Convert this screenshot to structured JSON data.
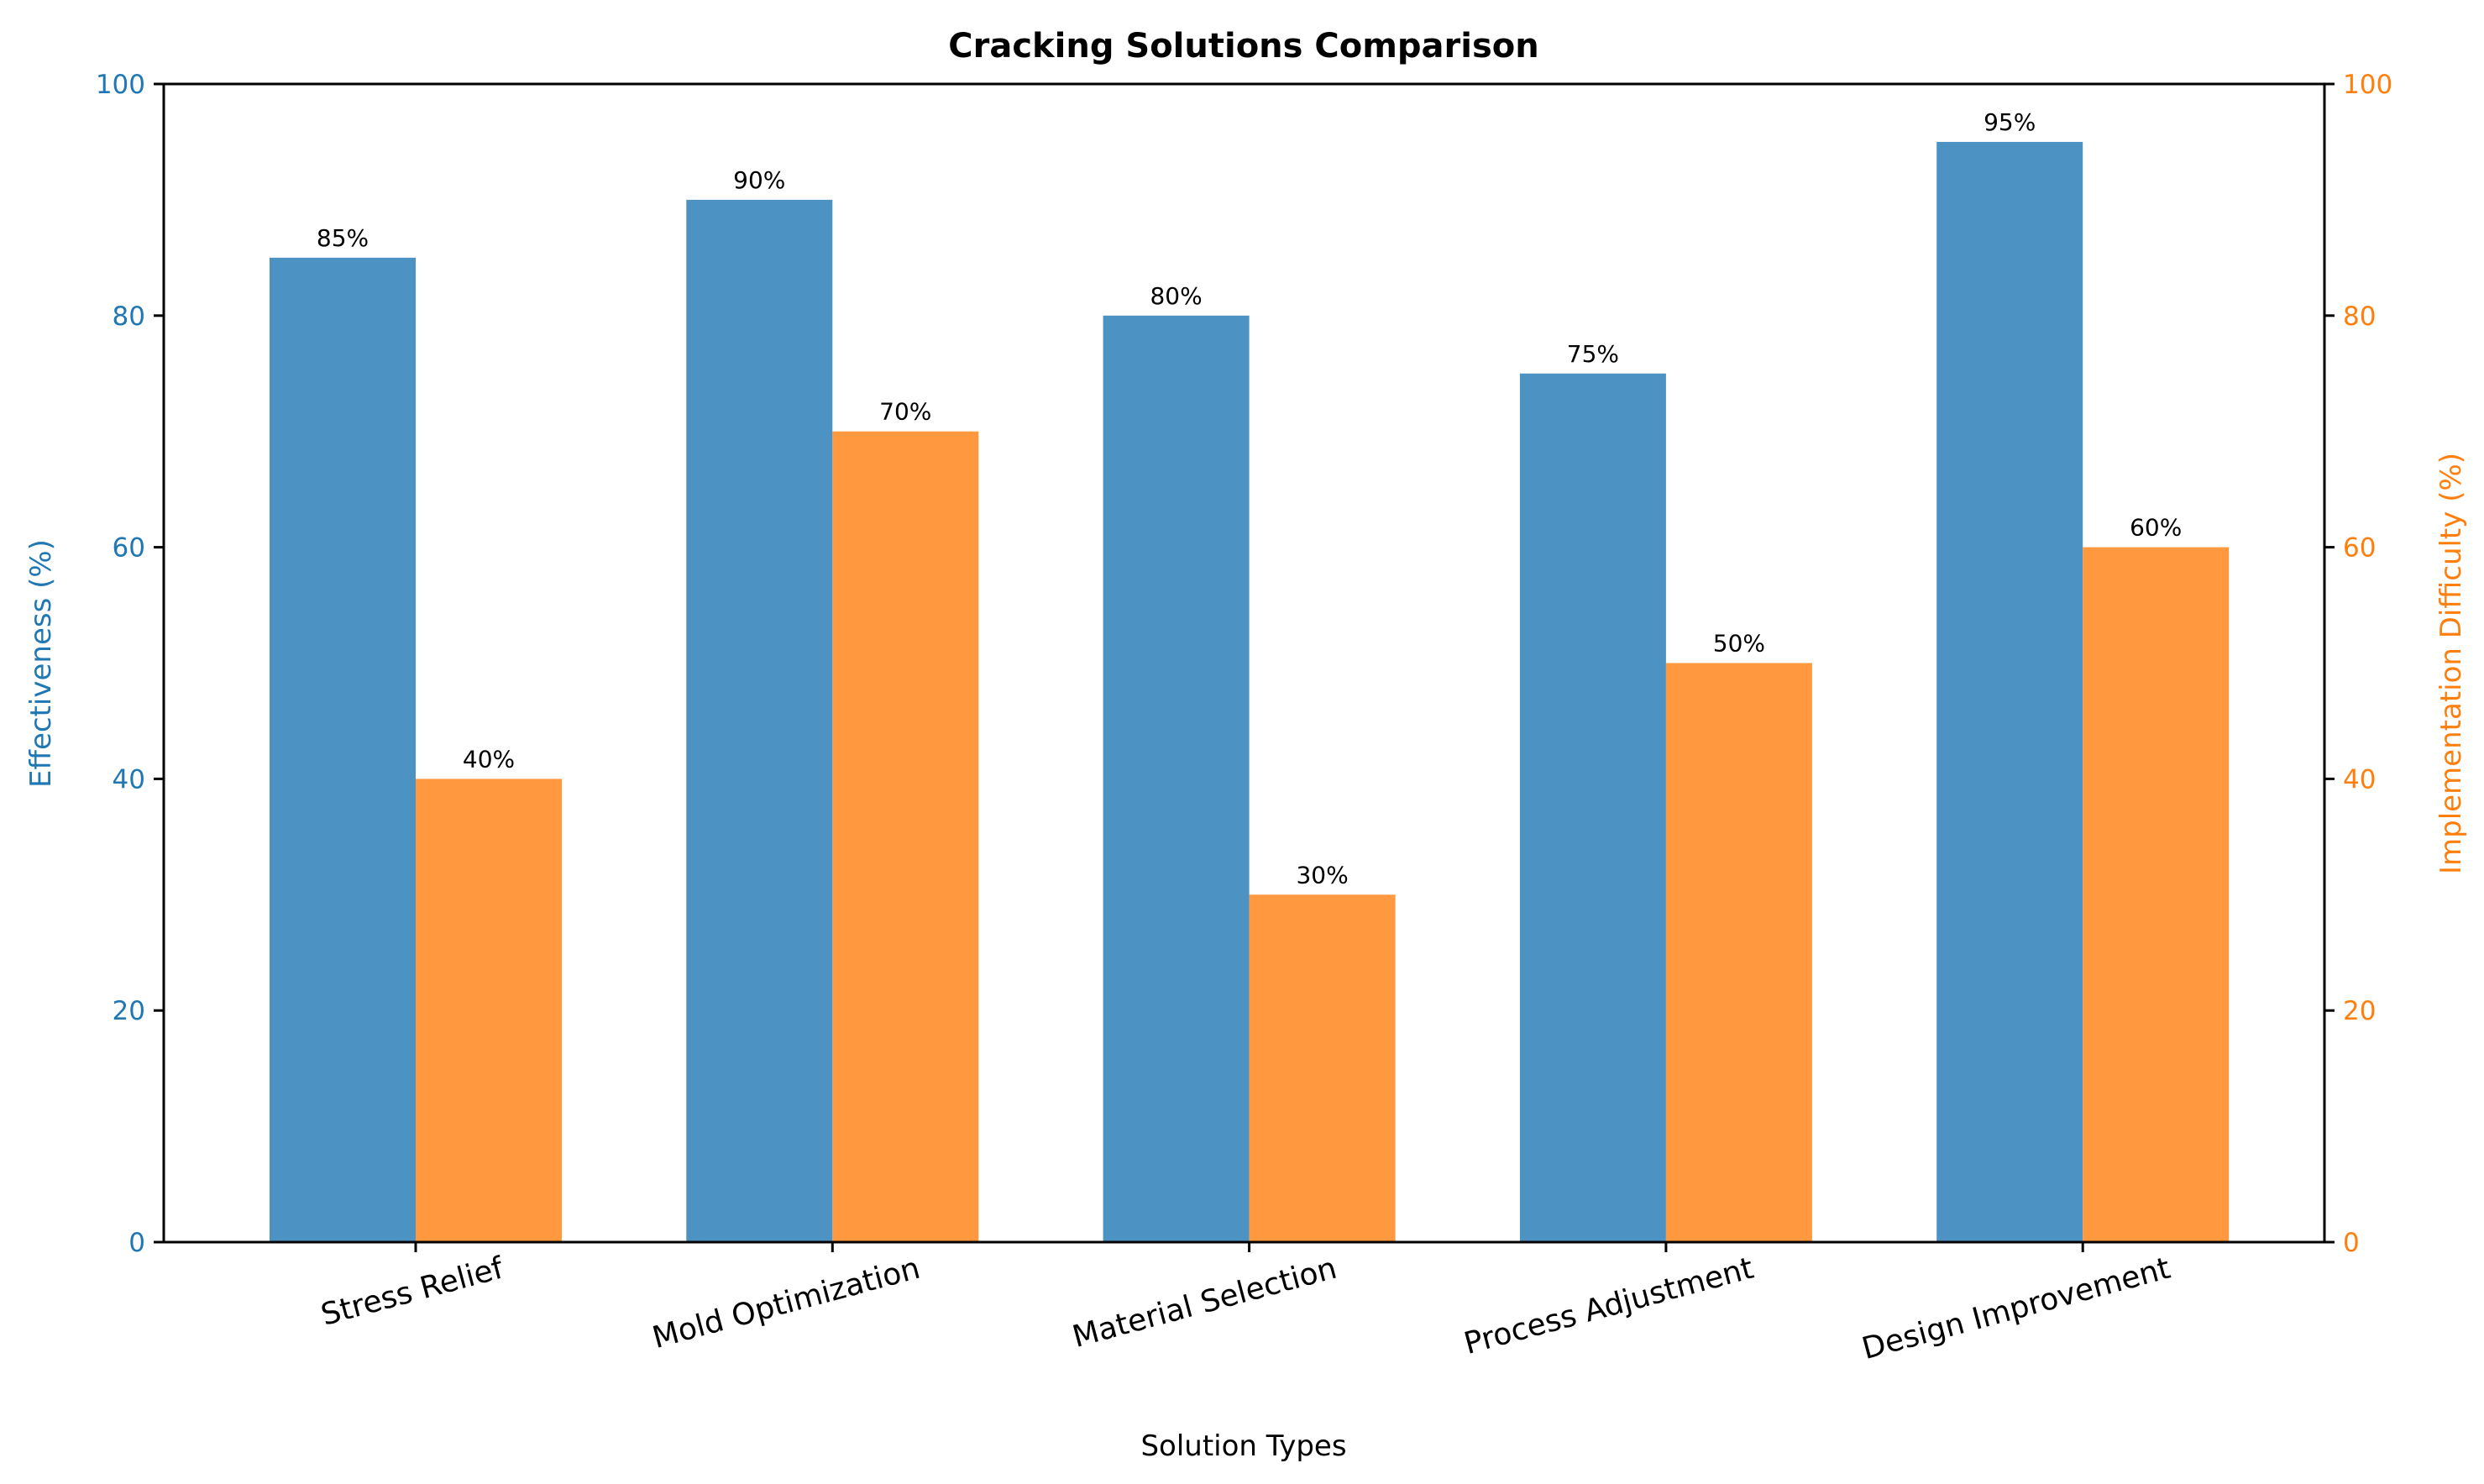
{
  "chart_data": {
    "type": "bar",
    "title": "Cracking Solutions Comparison",
    "xlabel": "Solution Types",
    "ylabel": "Effectiveness (%)",
    "ylabel_right": "Implementation Difficulty (%)",
    "categories": [
      "Stress Relief",
      "Mold Optimization",
      "Material Selection",
      "Process Adjustment",
      "Design Improvement"
    ],
    "series": [
      {
        "axis": "left",
        "color": "#4c92c3",
        "values": [
          85,
          90,
          80,
          75,
          95
        ],
        "labels": [
          "85%",
          "90%",
          "80%",
          "75%",
          "95%"
        ]
      },
      {
        "axis": "right",
        "color": "#ff983e",
        "values": [
          40,
          70,
          30,
          50,
          60
        ],
        "labels": [
          "40%",
          "70%",
          "30%",
          "50%",
          "60%"
        ]
      }
    ],
    "ylim": [
      0,
      100
    ],
    "ylim_right": [
      0,
      100
    ],
    "yticks": [
      "0",
      "20",
      "40",
      "60",
      "80",
      "100"
    ],
    "left_axis_color": "#1f77b4",
    "right_axis_color": "#ff7f0e",
    "grid": false,
    "xtick_rotation_deg": 15
  }
}
